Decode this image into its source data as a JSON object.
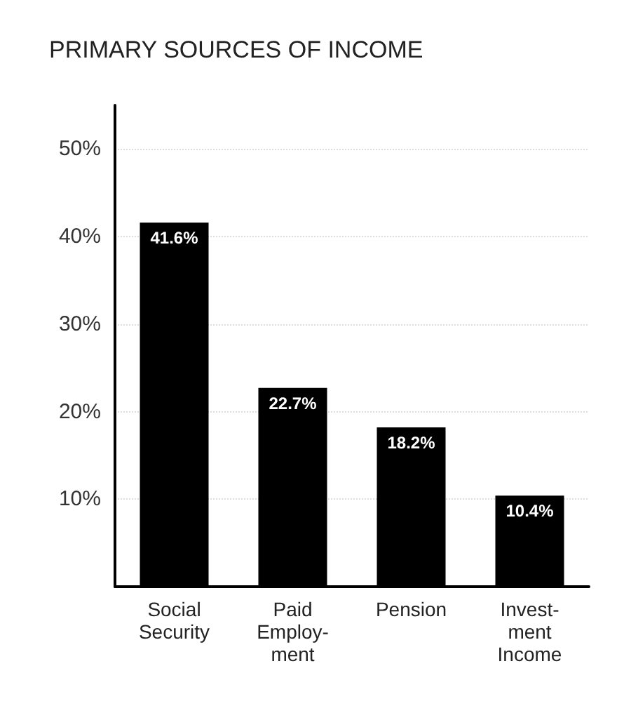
{
  "chart_data": {
    "type": "bar",
    "title": "PRIMARY SOURCES OF INCOME",
    "categories": [
      "Social\nSecurity",
      "Paid\nEmploy-\nment",
      "Pension",
      "Invest-\nment\nIncome"
    ],
    "values": [
      41.6,
      22.7,
      18.2,
      10.4
    ],
    "color": "#000000",
    "value_labels": [
      "41.6%",
      "22.7%",
      "18.2%",
      "10.4%"
    ],
    "ylim": [
      0,
      55
    ],
    "yticks": [
      {
        "value": 10,
        "label": "10%"
      },
      {
        "value": 20,
        "label": "20%"
      },
      {
        "value": 30,
        "label": "30%"
      },
      {
        "value": 40,
        "label": "40%"
      },
      {
        "value": 50,
        "label": "50%"
      }
    ],
    "grid": "y"
  }
}
